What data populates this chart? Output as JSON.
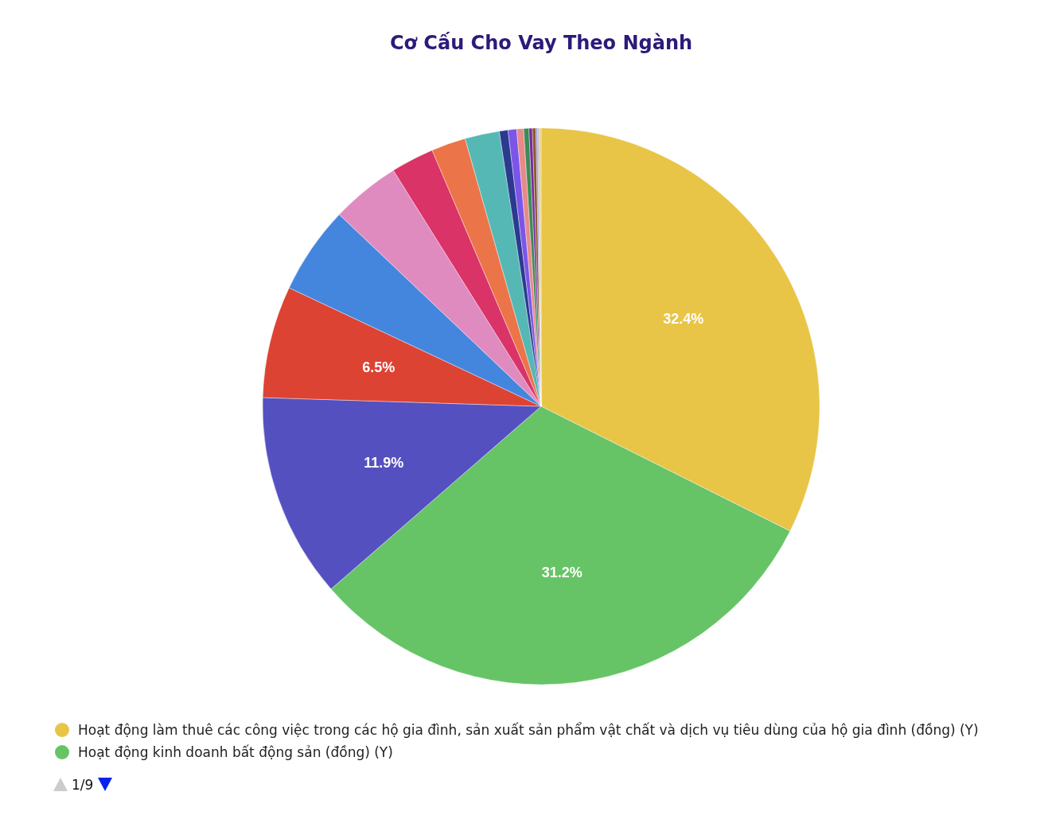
{
  "chart_data": {
    "type": "pie",
    "title": "Cơ Cấu Cho Vay Theo Ngành",
    "categories": [
      "Hoạt động làm thuê các công việc trong các hộ gia đình, sản xuất sản phẩm vật chất và dịch vụ tiêu dùng của hộ gia đình (đồng) (Y)",
      "Hoạt động kinh doanh bất động sản (đồng) (Y)",
      null,
      null,
      null,
      null,
      null,
      null,
      null,
      null,
      null,
      null,
      null,
      null,
      null,
      null,
      null,
      null
    ],
    "values": [
      32.4,
      31.2,
      11.9,
      6.5,
      5.1,
      4.0,
      2.5,
      2.0,
      2.0,
      0.5,
      0.5,
      0.4,
      0.3,
      0.2,
      0.2,
      0.1,
      0.1,
      0.1
    ],
    "colors": [
      "#e8c547",
      "#66c466",
      "#5450c0",
      "#dc4332",
      "#4486de",
      "#df8bc0",
      "#d93368",
      "#ec7449",
      "#55b8b5",
      "#2b3a8f",
      "#7b55e8",
      "#e88a8a",
      "#3d8b55",
      "#7a2aa0",
      "#8b5a2b",
      "#9a8fd0",
      "#bbbbbb",
      "#e8d080"
    ],
    "value_labels": [
      "32.4%",
      "31.2%",
      "11.9%",
      "6.5%",
      null,
      null,
      null,
      null,
      null,
      null,
      null,
      null,
      null,
      null,
      null,
      null,
      null,
      null
    ],
    "legend": "bottom",
    "annotations": [
      "1/9"
    ]
  }
}
